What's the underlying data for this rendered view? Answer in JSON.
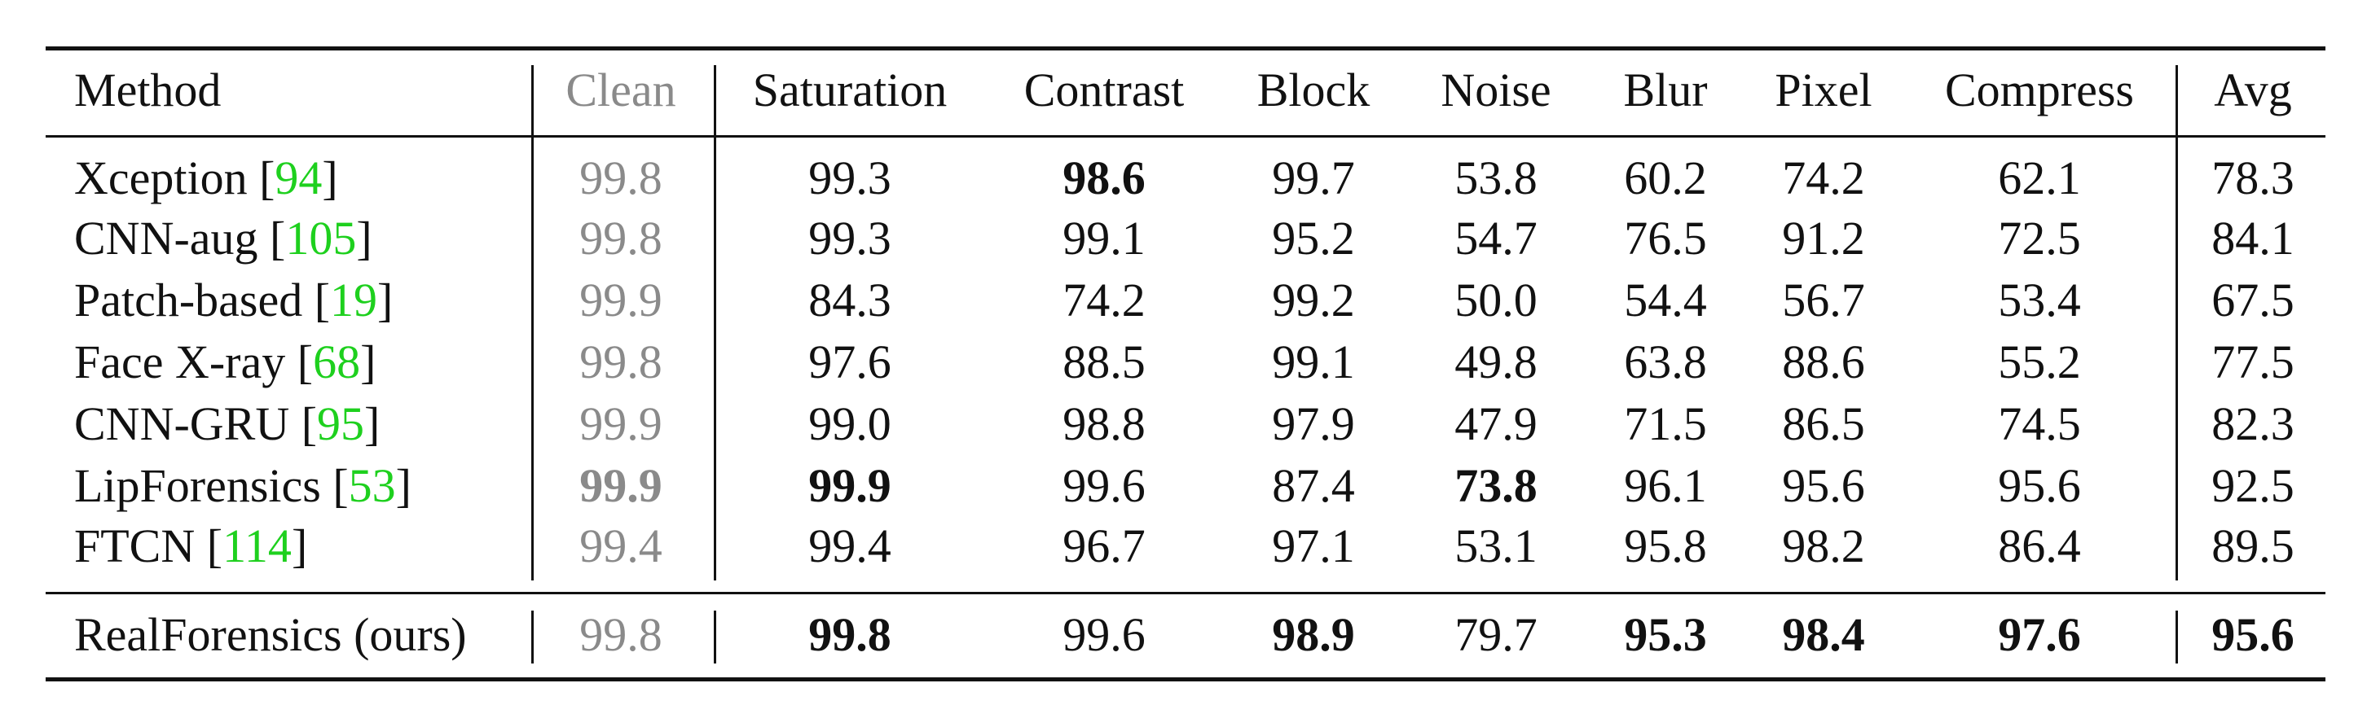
{
  "table": {
    "header": [
      "Method",
      "Clean",
      "Saturation",
      "Contrast",
      "Block",
      "Noise",
      "Blur",
      "Pixel",
      "Compress",
      "Avg"
    ],
    "rows": [
      {
        "label": [
          "Xception [",
          "94",
          "]"
        ],
        "values": [
          "99.8",
          "99.3",
          "98.6",
          "99.7",
          "53.8",
          "60.2",
          "74.2",
          "62.1",
          "78.3"
        ],
        "bold": [
          2
        ]
      },
      {
        "label": [
          "CNN-aug [",
          "105",
          "]"
        ],
        "values": [
          "99.8",
          "99.3",
          "99.1",
          "95.2",
          "54.7",
          "76.5",
          "91.2",
          "72.5",
          "84.1"
        ],
        "bold": []
      },
      {
        "label": [
          "Patch-based [",
          "19",
          "]"
        ],
        "values": [
          "99.9",
          "84.3",
          "74.2",
          "99.2",
          "50.0",
          "54.4",
          "56.7",
          "53.4",
          "67.5"
        ],
        "bold": []
      },
      {
        "label": [
          "Face X-ray [",
          "68",
          "]"
        ],
        "values": [
          "99.8",
          "97.6",
          "88.5",
          "99.1",
          "49.8",
          "63.8",
          "88.6",
          "55.2",
          "77.5"
        ],
        "bold": []
      },
      {
        "label": [
          "CNN-GRU [",
          "95",
          "]"
        ],
        "values": [
          "99.9",
          "99.0",
          "98.8",
          "97.9",
          "47.9",
          "71.5",
          "86.5",
          "74.5",
          "82.3"
        ],
        "bold": []
      },
      {
        "label": [
          "LipForensics [",
          "53",
          "]"
        ],
        "values": [
          "99.9",
          "99.9",
          "99.6",
          "87.4",
          "73.8",
          "96.1",
          "95.6",
          "95.6",
          "92.5"
        ],
        "bold": [
          0,
          1,
          4
        ]
      },
      {
        "label": [
          "FTCN [",
          "114",
          "]"
        ],
        "values": [
          "99.4",
          "99.4",
          "96.7",
          "97.1",
          "53.1",
          "95.8",
          "98.2",
          "86.4",
          "89.5"
        ],
        "bold": []
      },
      {
        "label": [
          "RealForensics (ours)"
        ],
        "values": [
          "99.8",
          "99.8",
          "99.6",
          "98.9",
          "79.7",
          "95.3",
          "98.4",
          "97.6",
          "95.6"
        ],
        "bold": [
          1,
          3,
          5,
          6,
          7,
          8
        ]
      }
    ]
  }
}
